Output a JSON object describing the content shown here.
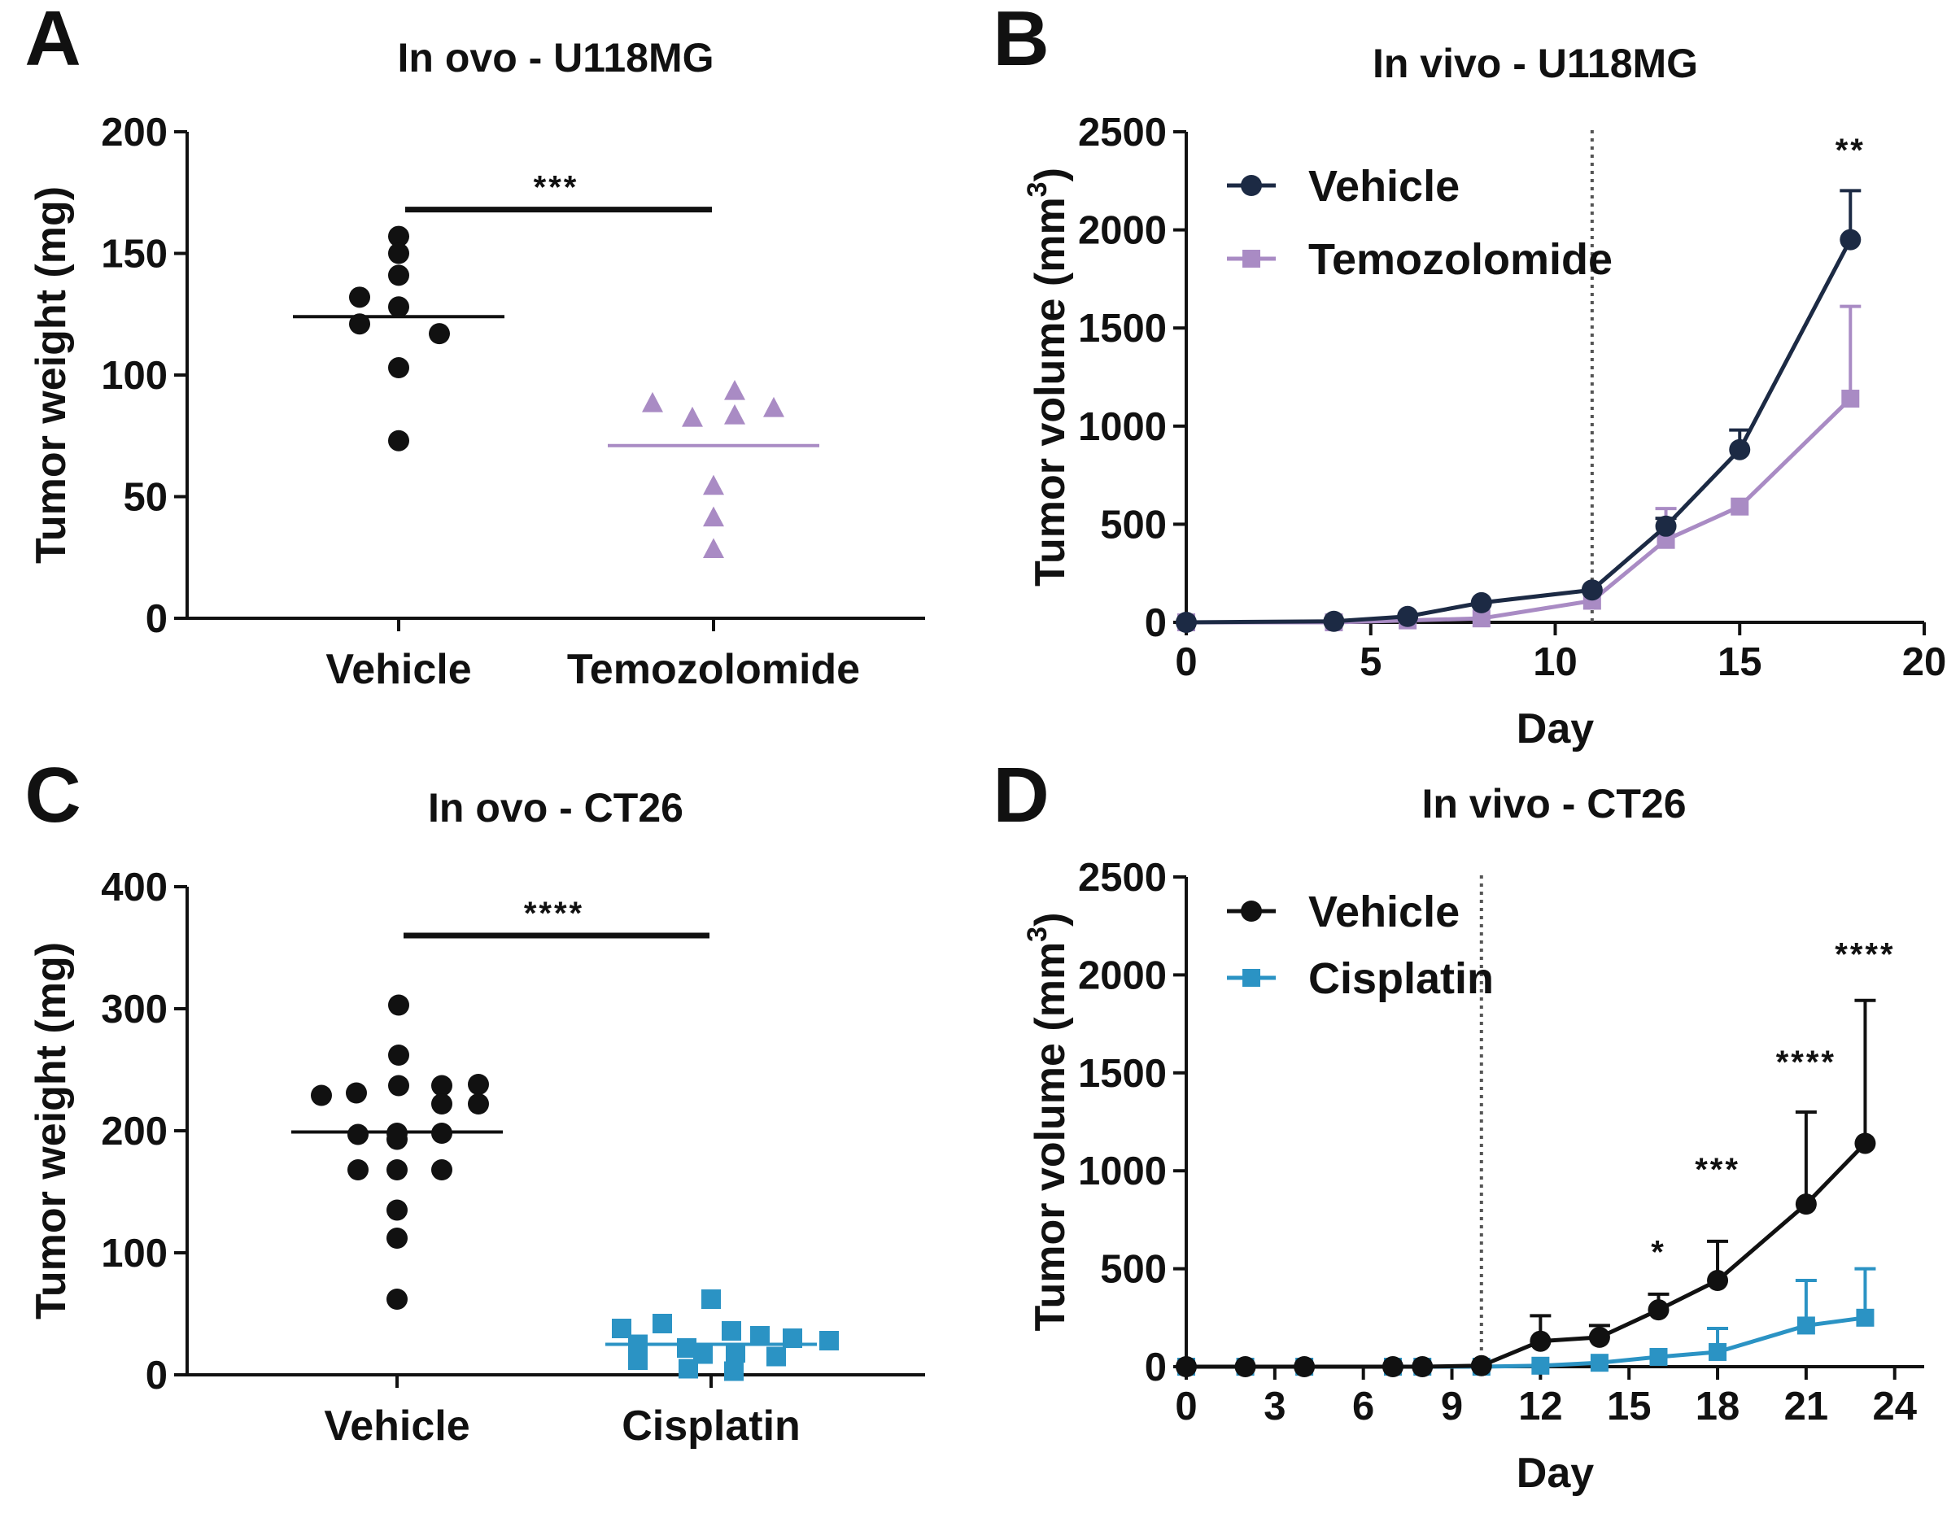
{
  "figure": {
    "colors": {
      "vehicle_a": "#111111",
      "temozolomide": "#a98bc4",
      "vehicle_b": "#1c2a44",
      "vehicle_d": "#111111",
      "cisplatin": "#2b93c4"
    }
  },
  "chart_data": [
    {
      "id": "A",
      "panel_label": "A",
      "type": "scatter",
      "title": "In ovo - U118MG",
      "xlabel": "",
      "ylabel": "Tumor weight (mg)",
      "ylim": [
        0,
        200
      ],
      "yticks": [
        0,
        50,
        100,
        150,
        200
      ],
      "categories": [
        "Vehicle",
        "Temozolomide"
      ],
      "series": [
        {
          "name": "Vehicle",
          "marker": "circle",
          "color": "#111111",
          "mean": 124,
          "points": [
            157,
            150,
            141,
            132,
            128,
            121,
            117,
            103,
            73
          ]
        },
        {
          "name": "Temozolomide",
          "marker": "triangle",
          "color": "#a98bc4",
          "mean": 71,
          "points": [
            88,
            82,
            93,
            83,
            86,
            54,
            41,
            28
          ]
        }
      ],
      "significance": {
        "label": "***",
        "from": "Vehicle",
        "to": "Temozolomide",
        "y": 168
      }
    },
    {
      "id": "B",
      "panel_label": "B",
      "type": "line",
      "title": "In vivo - U118MG",
      "xlabel": "Day",
      "ylabel": "Tumor volume (mm³)",
      "xlim": [
        0,
        20
      ],
      "xticks": [
        0,
        5,
        10,
        15,
        20
      ],
      "ylim": [
        0,
        2500
      ],
      "yticks": [
        0,
        500,
        1000,
        1500,
        2000,
        2500
      ],
      "treatment_start_day": 11,
      "legend": [
        "Vehicle",
        "Temozolomide"
      ],
      "series": [
        {
          "name": "Vehicle",
          "marker": "circle",
          "color": "#1c2a44",
          "x": [
            0,
            4,
            6,
            8,
            11,
            13,
            15,
            18
          ],
          "y": [
            0,
            5,
            30,
            100,
            165,
            490,
            880,
            1950
          ],
          "err": [
            0,
            0,
            0,
            0,
            0,
            40,
            100,
            250
          ]
        },
        {
          "name": "Temozolomide",
          "marker": "square",
          "color": "#a98bc4",
          "x": [
            0,
            4,
            6,
            8,
            11,
            13,
            15,
            18
          ],
          "y": [
            0,
            0,
            10,
            20,
            110,
            420,
            590,
            1140
          ],
          "err": [
            0,
            0,
            0,
            0,
            0,
            160,
            0,
            470
          ]
        }
      ],
      "annotations": [
        {
          "label": "**",
          "x": 18,
          "y": 2350
        }
      ]
    },
    {
      "id": "C",
      "panel_label": "C",
      "type": "scatter",
      "title": "In ovo - CT26",
      "xlabel": "",
      "ylabel": "Tumor weight (mg)",
      "ylim": [
        0,
        400
      ],
      "yticks": [
        0,
        100,
        200,
        300,
        400
      ],
      "categories": [
        "Vehicle",
        "Cisplatin"
      ],
      "series": [
        {
          "name": "Vehicle",
          "marker": "circle",
          "color": "#111111",
          "mean": 199,
          "points": [
            303,
            262,
            237,
            237,
            238,
            231,
            229,
            222,
            222,
            198,
            198,
            197,
            193,
            168,
            168,
            168,
            135,
            112,
            62
          ]
        },
        {
          "name": "Cisplatin",
          "marker": "square",
          "color": "#2b93c4",
          "mean": 25,
          "points": [
            62,
            42,
            38,
            36,
            32,
            30,
            28,
            25,
            22,
            18,
            17,
            15,
            12,
            5,
            3
          ]
        }
      ],
      "significance": {
        "label": "****",
        "from": "Vehicle",
        "to": "Cisplatin",
        "y": 360
      }
    },
    {
      "id": "D",
      "panel_label": "D",
      "type": "line",
      "title": "In vivo - CT26",
      "xlabel": "Day",
      "ylabel": "Tumor volume (mm³)",
      "xlim": [
        0,
        25
      ],
      "xticks": [
        0,
        3,
        6,
        9,
        12,
        15,
        18,
        21,
        24
      ],
      "ylim": [
        0,
        2500
      ],
      "yticks": [
        0,
        500,
        1000,
        1500,
        2000,
        2500
      ],
      "treatment_start_day": 10,
      "legend": [
        "Vehicle",
        "Cisplatin"
      ],
      "series": [
        {
          "name": "Vehicle",
          "marker": "circle",
          "color": "#111111",
          "x": [
            0,
            2,
            4,
            7,
            8,
            10,
            12,
            14,
            16,
            18,
            21,
            23
          ],
          "y": [
            0,
            0,
            0,
            0,
            0,
            5,
            130,
            150,
            290,
            440,
            830,
            1140
          ],
          "err": [
            0,
            0,
            0,
            0,
            0,
            0,
            130,
            60,
            80,
            200,
            470,
            730
          ]
        },
        {
          "name": "Cisplatin",
          "marker": "square",
          "color": "#2b93c4",
          "x": [
            0,
            2,
            4,
            7,
            8,
            10,
            12,
            14,
            16,
            18,
            21,
            23
          ],
          "y": [
            0,
            0,
            0,
            0,
            0,
            0,
            5,
            20,
            50,
            75,
            210,
            250
          ],
          "err": [
            0,
            0,
            0,
            0,
            0,
            0,
            0,
            0,
            0,
            120,
            230,
            250
          ]
        }
      ],
      "annotations": [
        {
          "label": "*",
          "x": 16,
          "y": 530
        },
        {
          "label": "***",
          "x": 18,
          "y": 950
        },
        {
          "label": "****",
          "x": 21,
          "y": 1500
        },
        {
          "label": "****",
          "x": 23,
          "y": 2050
        }
      ]
    }
  ]
}
